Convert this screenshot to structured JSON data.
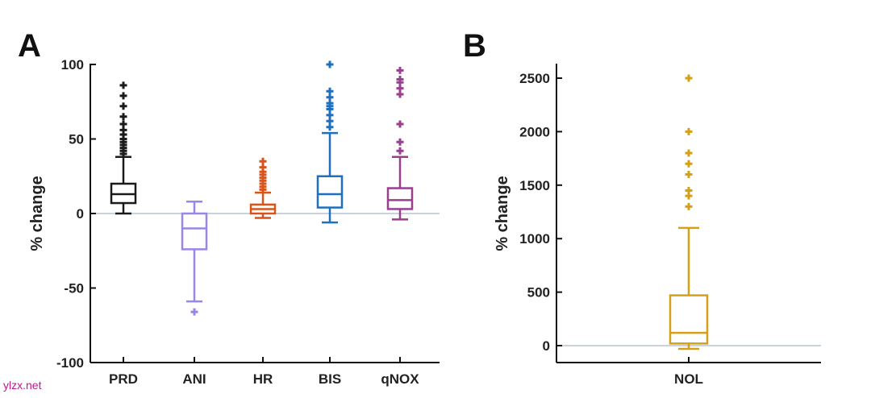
{
  "watermark": "ylzx.net",
  "chart_data": [
    {
      "type": "box",
      "panel_label": "A",
      "title": "",
      "xlabel": "",
      "ylabel": "% change",
      "ylim": [
        -100,
        100
      ],
      "yticks": [
        100,
        50,
        0,
        -50,
        -100
      ],
      "ytick_labels": [
        "100",
        "50",
        "0",
        "-50",
        "-100"
      ],
      "reference_line": 0,
      "categories": [
        "PRD",
        "ANI",
        "HR",
        "BIS",
        "qNOX"
      ],
      "series": [
        {
          "name": "PRD",
          "color": "#1a1a1a",
          "q1": 7,
          "median": 13,
          "q3": 20,
          "whisker_low": 0,
          "whisker_high": 38,
          "outliers": [
            40,
            42,
            44,
            46,
            48,
            50,
            53,
            56,
            60,
            65,
            72,
            79,
            86
          ]
        },
        {
          "name": "ANI",
          "color": "#9b85e8",
          "q1": -24,
          "median": -10,
          "q3": 0,
          "whisker_low": -59,
          "whisker_high": 8,
          "outliers": [
            -66
          ]
        },
        {
          "name": "HR",
          "color": "#d9541b",
          "q1": 0,
          "median": 3,
          "q3": 6,
          "whisker_low": -3,
          "whisker_high": 14,
          "outliers": [
            16,
            18,
            20,
            22,
            24,
            26,
            28,
            31,
            35
          ]
        },
        {
          "name": "BIS",
          "color": "#1f6fbf",
          "q1": 4,
          "median": 13,
          "q3": 25,
          "whisker_low": -6,
          "whisker_high": 54,
          "outliers": [
            58,
            62,
            66,
            70,
            72,
            74,
            78,
            82,
            100
          ]
        },
        {
          "name": "qNOX",
          "color": "#9a3f8f",
          "q1": 3,
          "median": 9,
          "q3": 17,
          "whisker_low": -4,
          "whisker_high": 38,
          "outliers": [
            42,
            48,
            60,
            80,
            84,
            88,
            90,
            96
          ]
        }
      ]
    },
    {
      "type": "box",
      "panel_label": "B",
      "title": "",
      "xlabel": "",
      "ylabel": "% change",
      "ylim": [
        -50,
        2600
      ],
      "yticks": [
        0,
        500,
        1000,
        1500,
        2000,
        2500
      ],
      "ytick_labels": [
        "0",
        "500",
        "1000",
        "1500",
        "2000",
        "2500"
      ],
      "reference_line": 0,
      "categories": [
        "NOL"
      ],
      "series": [
        {
          "name": "NOL",
          "color": "#d4a016",
          "q1": 20,
          "median": 120,
          "q3": 470,
          "whisker_low": -30,
          "whisker_high": 1100,
          "outliers": [
            1300,
            1400,
            1450,
            1600,
            1700,
            1800,
            2000,
            2500
          ]
        }
      ]
    }
  ]
}
